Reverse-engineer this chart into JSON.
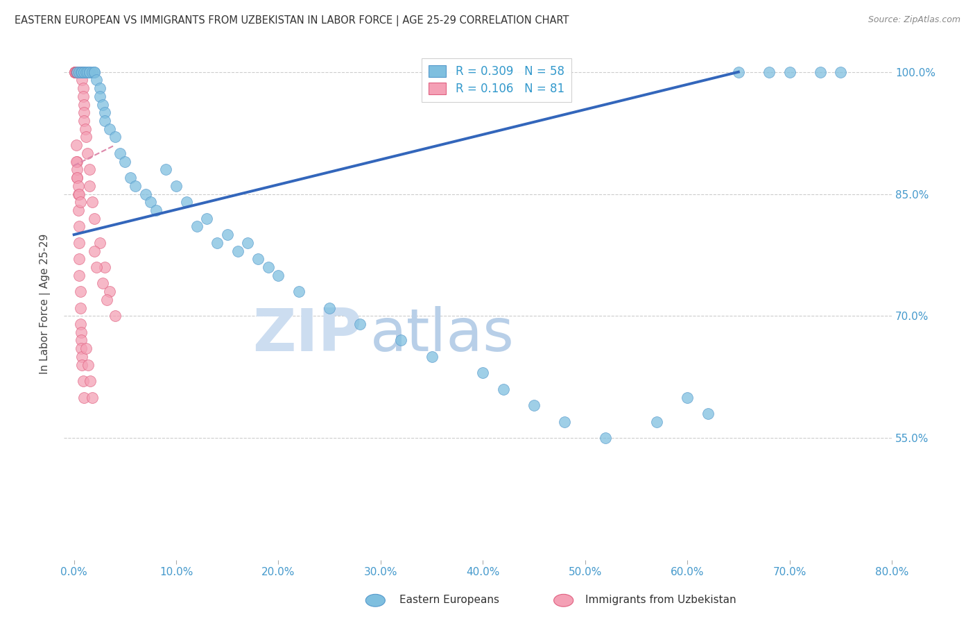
{
  "title": "EASTERN EUROPEAN VS IMMIGRANTS FROM UZBEKISTAN IN LABOR FORCE | AGE 25-29 CORRELATION CHART",
  "source": "Source: ZipAtlas.com",
  "ylabel": "In Labor Force | Age 25-29",
  "y_tick_vals": [
    55.0,
    70.0,
    85.0,
    100.0
  ],
  "y_tick_labels": [
    "55.0%",
    "70.0%",
    "85.0%",
    "100.0%"
  ],
  "x_tick_vals": [
    0,
    10,
    20,
    30,
    40,
    50,
    60,
    70,
    80
  ],
  "x_tick_labels": [
    "0.0%",
    "10.0%",
    "20.0%",
    "30.0%",
    "40.0%",
    "50.0%",
    "60.0%",
    "70.0%",
    "80.0%"
  ],
  "y_min": 40.0,
  "y_max": 103.0,
  "x_min": -1.0,
  "x_max": 80.0,
  "blue_color": "#7fbfdf",
  "pink_color": "#f4a0b5",
  "blue_edge_color": "#5599cc",
  "pink_edge_color": "#e06080",
  "blue_line_color": "#3366bb",
  "pink_line_color": "#dd88aa",
  "grid_color": "#cccccc",
  "title_color": "#333333",
  "source_color": "#888888",
  "axis_label_color": "#444444",
  "tick_color": "#4499cc",
  "legend_label_color": "#3399cc",
  "blue_scatter_x": [
    0.3,
    0.5,
    0.7,
    0.8,
    1.0,
    1.0,
    1.2,
    1.3,
    1.5,
    1.5,
    1.8,
    2.0,
    2.0,
    2.2,
    2.5,
    2.5,
    2.8,
    3.0,
    3.0,
    3.5,
    4.0,
    4.5,
    5.0,
    5.5,
    6.0,
    7.0,
    7.5,
    8.0,
    9.0,
    10.0,
    11.0,
    12.0,
    13.0,
    14.0,
    15.0,
    16.0,
    17.0,
    18.0,
    19.0,
    20.0,
    22.0,
    25.0,
    28.0,
    32.0,
    35.0,
    40.0,
    42.0,
    45.0,
    48.0,
    52.0,
    57.0,
    60.0,
    62.0,
    65.0,
    68.0,
    70.0,
    73.0,
    75.0
  ],
  "blue_scatter_y": [
    100.0,
    100.0,
    100.0,
    100.0,
    100.0,
    100.0,
    100.0,
    100.0,
    100.0,
    100.0,
    100.0,
    100.0,
    100.0,
    99.0,
    98.0,
    97.0,
    96.0,
    95.0,
    94.0,
    93.0,
    92.0,
    90.0,
    89.0,
    87.0,
    86.0,
    85.0,
    84.0,
    83.0,
    88.0,
    86.0,
    84.0,
    81.0,
    82.0,
    79.0,
    80.0,
    78.0,
    79.0,
    77.0,
    76.0,
    75.0,
    73.0,
    71.0,
    69.0,
    67.0,
    65.0,
    63.0,
    61.0,
    59.0,
    57.0,
    55.0,
    57.0,
    60.0,
    58.0,
    100.0,
    100.0,
    100.0,
    100.0,
    100.0
  ],
  "pink_scatter_x": [
    0.1,
    0.1,
    0.1,
    0.1,
    0.1,
    0.2,
    0.2,
    0.2,
    0.2,
    0.3,
    0.3,
    0.3,
    0.3,
    0.3,
    0.4,
    0.4,
    0.4,
    0.5,
    0.5,
    0.5,
    0.5,
    0.5,
    0.5,
    0.6,
    0.6,
    0.6,
    0.7,
    0.7,
    0.7,
    0.8,
    0.8,
    0.8,
    0.9,
    0.9,
    1.0,
    1.0,
    1.0,
    1.1,
    1.2,
    1.3,
    1.5,
    1.5,
    1.8,
    2.0,
    2.5,
    3.0,
    3.5,
    4.0,
    0.3,
    0.3,
    0.4,
    0.4,
    0.5,
    0.5,
    0.5,
    0.5,
    0.6,
    0.6,
    0.6,
    0.7,
    0.7,
    0.7,
    0.8,
    0.8,
    0.9,
    1.0,
    1.2,
    1.4,
    1.6,
    1.8,
    2.0,
    2.2,
    2.8,
    3.2,
    0.2,
    0.2,
    0.3,
    0.3,
    0.4,
    0.5,
    0.6
  ],
  "pink_scatter_y": [
    100.0,
    100.0,
    100.0,
    100.0,
    100.0,
    100.0,
    100.0,
    100.0,
    100.0,
    100.0,
    100.0,
    100.0,
    100.0,
    100.0,
    100.0,
    100.0,
    100.0,
    100.0,
    100.0,
    100.0,
    100.0,
    100.0,
    100.0,
    100.0,
    100.0,
    100.0,
    100.0,
    100.0,
    100.0,
    100.0,
    100.0,
    99.0,
    98.0,
    97.0,
    96.0,
    95.0,
    94.0,
    93.0,
    92.0,
    90.0,
    88.0,
    86.0,
    84.0,
    82.0,
    79.0,
    76.0,
    73.0,
    70.0,
    89.0,
    87.0,
    85.0,
    83.0,
    81.0,
    79.0,
    77.0,
    75.0,
    73.0,
    71.0,
    69.0,
    68.0,
    67.0,
    66.0,
    65.0,
    64.0,
    62.0,
    60.0,
    66.0,
    64.0,
    62.0,
    60.0,
    78.0,
    76.0,
    74.0,
    72.0,
    91.0,
    89.0,
    88.0,
    87.0,
    86.0,
    85.0,
    84.0
  ],
  "blue_trend_x": [
    0.0,
    65.0
  ],
  "blue_trend_y": [
    80.0,
    100.0
  ],
  "pink_trend_x": [
    0.0,
    4.0
  ],
  "pink_trend_y": [
    88.5,
    91.0
  ],
  "watermark_zip_color": "#ccddf0",
  "watermark_atlas_color": "#b8cfe8"
}
